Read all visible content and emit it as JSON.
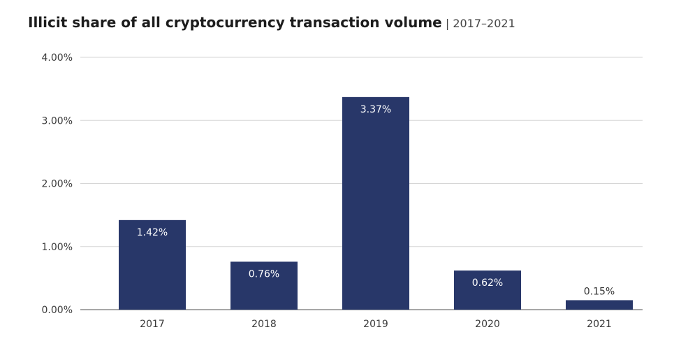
{
  "header": {
    "title": "Illicit share of all cryptocurrency transaction volume",
    "subtitle": "| 2017–2021"
  },
  "chart_data": {
    "type": "bar",
    "title": "Illicit share of all cryptocurrency transaction volume",
    "subtitle": "| 2017–2021",
    "categories": [
      "2017",
      "2018",
      "2019",
      "2020",
      "2021"
    ],
    "values": [
      1.42,
      0.76,
      3.37,
      0.62,
      0.15
    ],
    "value_labels": [
      "1.42%",
      "0.76%",
      "3.37%",
      "0.62%",
      "0.15%"
    ],
    "yticks": [
      0,
      1,
      2,
      3,
      4
    ],
    "ytick_labels": [
      "0.00%",
      "1.00%",
      "2.00%",
      "3.00%",
      "4.00%"
    ],
    "ylim": [
      0,
      4
    ],
    "xlabel": "",
    "ylabel": "",
    "grid": true,
    "legend": "none",
    "colors": {
      "bar": "#283769",
      "grid": "#d6d6d6",
      "baseline": "#8a8a8a",
      "label_inside": "#ffffff",
      "label_outside": "#333333"
    }
  }
}
